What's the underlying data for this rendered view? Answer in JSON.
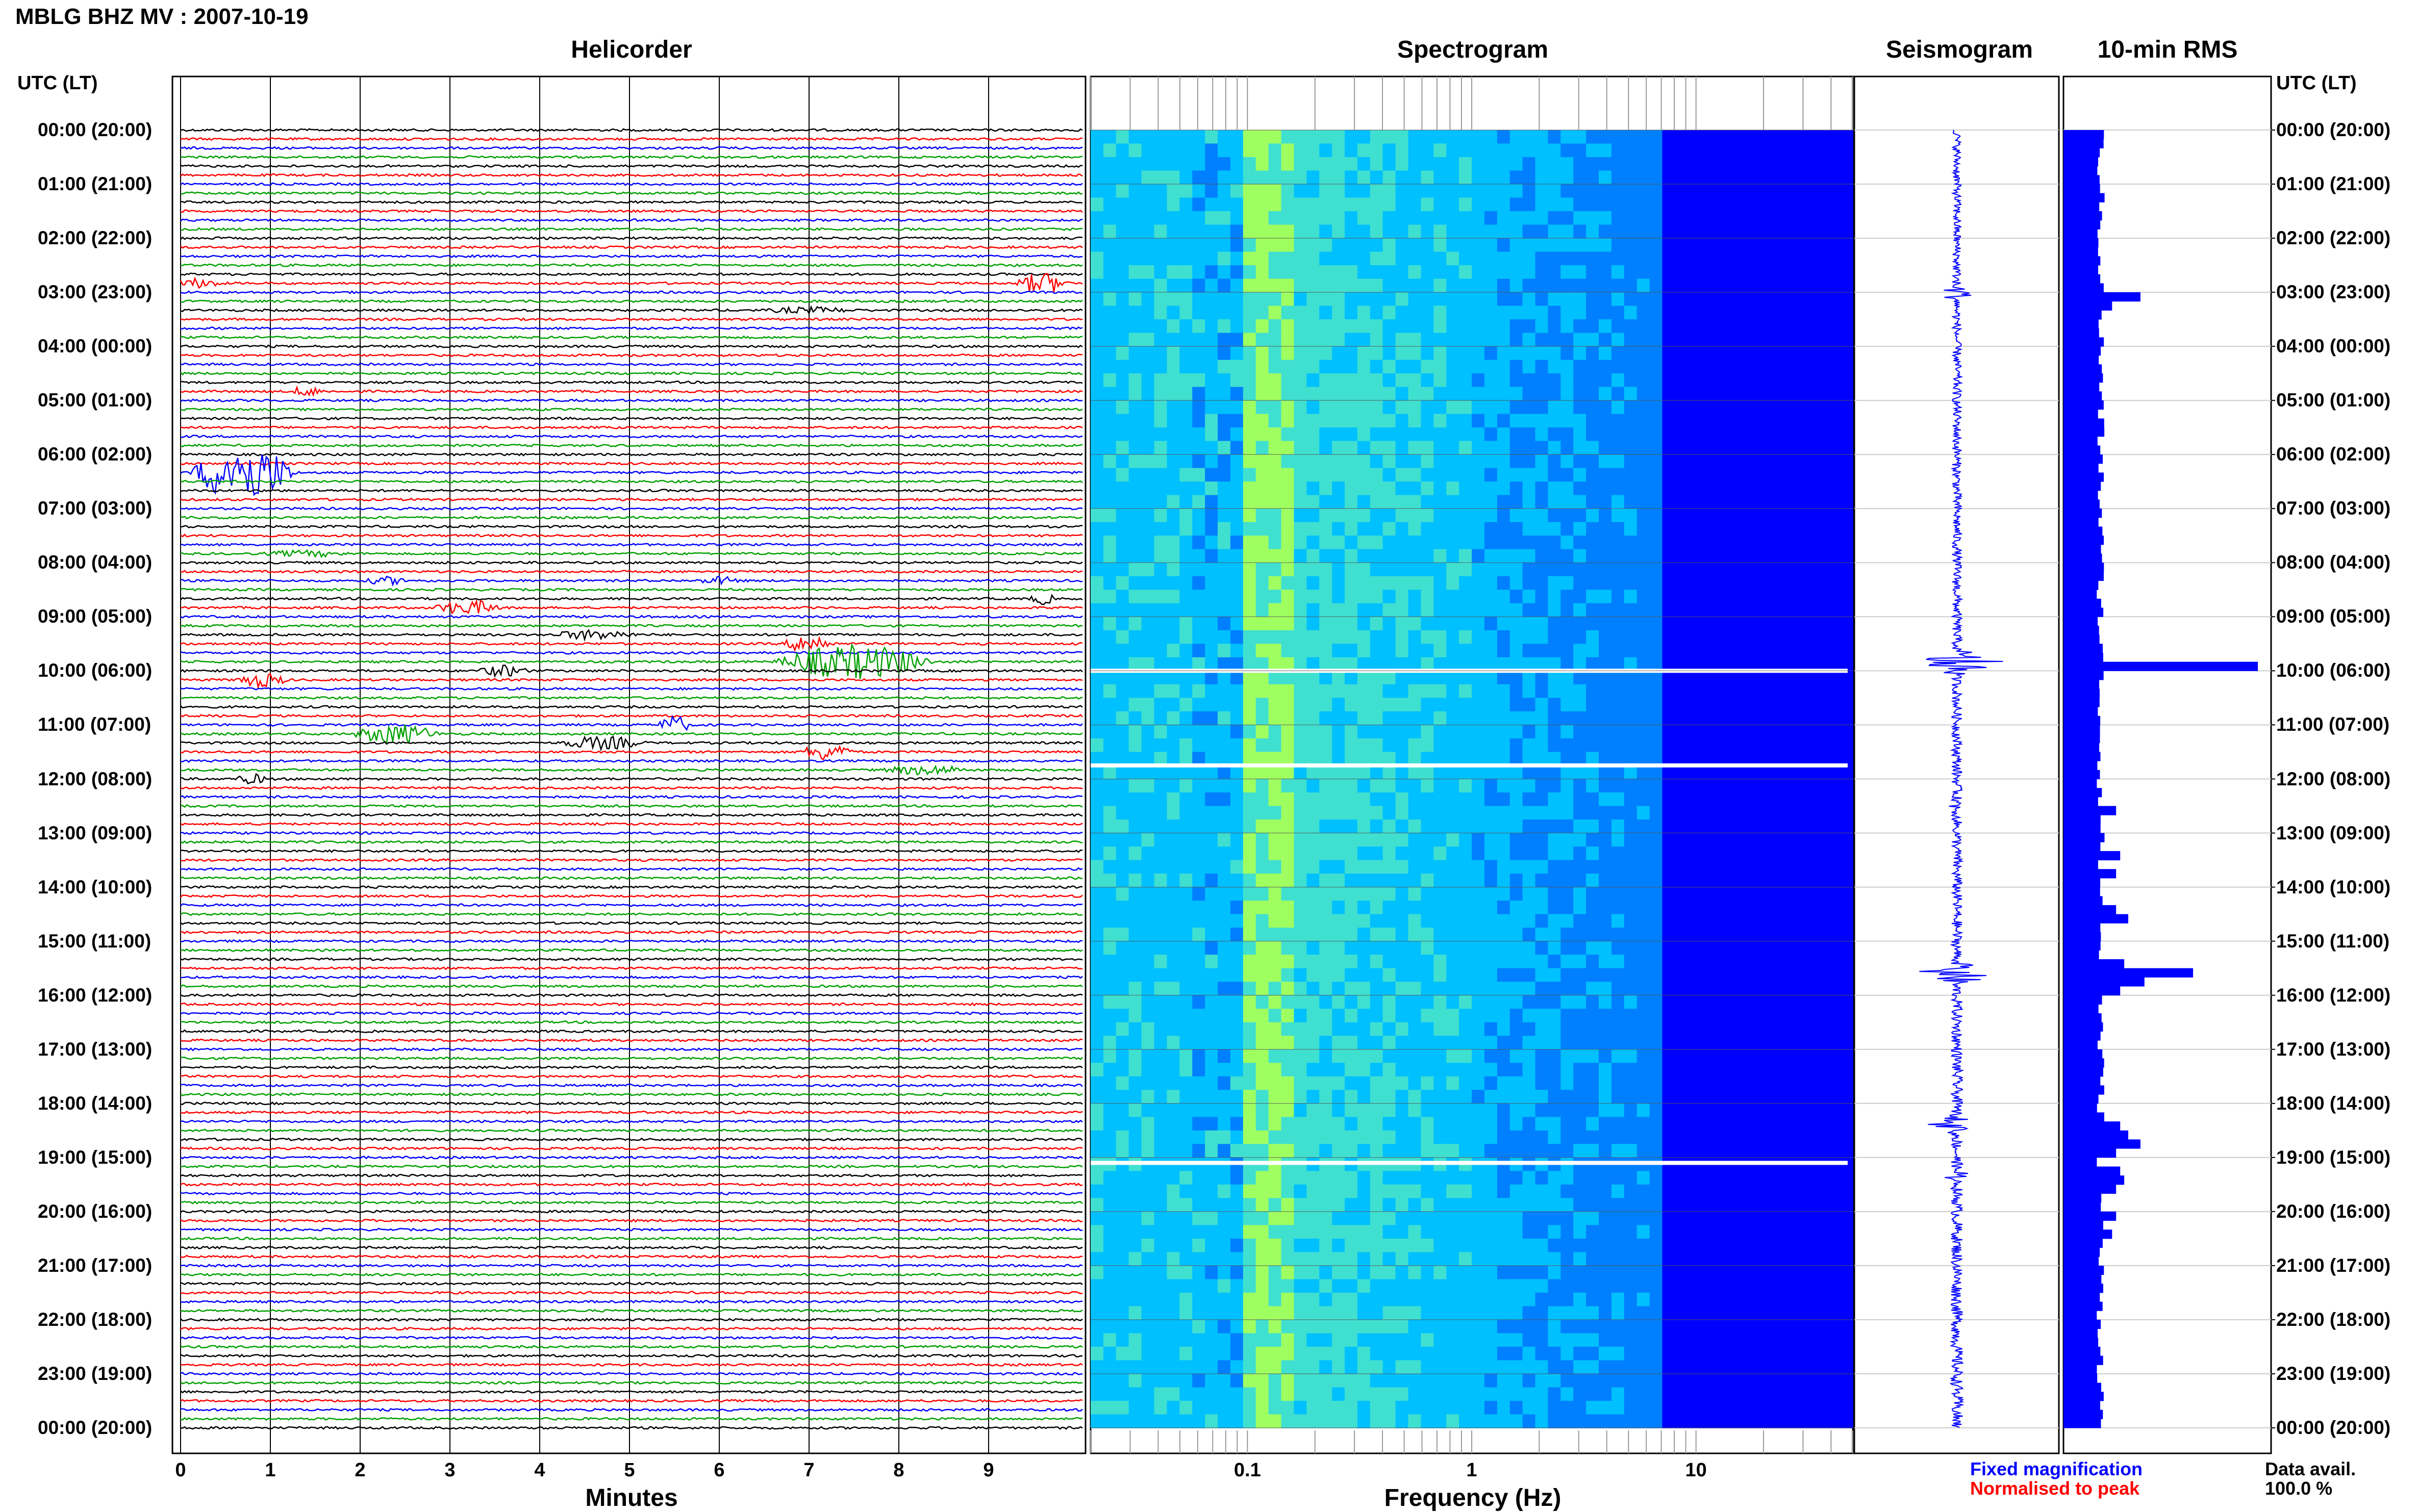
{
  "header": {
    "title": "MBLG BHZ MV : 2007-10-19"
  },
  "panels": {
    "helicorder": "Helicorder",
    "spectrogram": "Spectrogram",
    "seismogram": "Seismogram",
    "rms": "10-min RMS"
  },
  "axis_titles": {
    "left_time": "UTC (LT)",
    "right_time": "UTC (LT)",
    "helicorder_x": "Minutes",
    "spectrogram_x": "Frequency (Hz)"
  },
  "legend": {
    "fixed": "Fixed magnification",
    "normalised": "Normalised to peak",
    "fixed_color": "#0000ff",
    "normalised_color": "#ff0000",
    "avail_label": "Data avail.",
    "avail_value": "100.0 %"
  },
  "chart_data": [
    {
      "type": "line",
      "panel": "Helicorder",
      "xlabel": "Minutes",
      "x_ticks": [
        "0",
        "1",
        "2",
        "3",
        "4",
        "5",
        "6",
        "7",
        "8",
        "9"
      ],
      "xlim": [
        0,
        10
      ],
      "trace_colors": [
        "#000000",
        "#ff0000",
        "#0000ff",
        "#00a000"
      ],
      "hour_labels": [
        "00:00 (20:00)",
        "01:00 (21:00)",
        "02:00 (22:00)",
        "03:00 (23:00)",
        "04:00 (00:00)",
        "05:00 (01:00)",
        "06:00 (02:00)",
        "07:00 (03:00)",
        "08:00 (04:00)",
        "09:00 (05:00)",
        "10:00 (06:00)",
        "11:00 (07:00)",
        "12:00 (08:00)",
        "13:00 (09:00)",
        "14:00 (10:00)",
        "15:00 (11:00)",
        "16:00 (12:00)",
        "17:00 (13:00)",
        "18:00 (14:00)",
        "19:00 (15:00)",
        "20:00 (16:00)",
        "21:00 (17:00)",
        "22:00 (18:00)",
        "23:00 (19:00)",
        "00:00 (20:00)"
      ],
      "lines_per_hour": 6,
      "events": [
        {
          "row": 17,
          "minute": 9.6,
          "width": 0.6,
          "amp": 1.2
        },
        {
          "row": 17,
          "minute": 0.2,
          "width": 0.6,
          "amp": 0.5
        },
        {
          "row": 20,
          "minute": 7.0,
          "width": 1.0,
          "amp": 0.3
        },
        {
          "row": 29,
          "minute": 1.4,
          "width": 0.4,
          "amp": 0.5
        },
        {
          "row": 38,
          "minute": 0.7,
          "width": 1.2,
          "amp": 3.5
        },
        {
          "row": 47,
          "minute": 1.4,
          "width": 1.0,
          "amp": 0.3
        },
        {
          "row": 50,
          "minute": 2.3,
          "width": 0.5,
          "amp": 0.4
        },
        {
          "row": 50,
          "minute": 6.0,
          "width": 0.5,
          "amp": 0.4
        },
        {
          "row": 52,
          "minute": 9.6,
          "width": 0.3,
          "amp": 0.6
        },
        {
          "row": 53,
          "minute": 3.2,
          "width": 0.8,
          "amp": 0.8
        },
        {
          "row": 56,
          "minute": 4.6,
          "width": 1.0,
          "amp": 0.5
        },
        {
          "row": 57,
          "minute": 7.0,
          "width": 0.6,
          "amp": 1.0
        },
        {
          "row": 59,
          "minute": 7.5,
          "width": 1.8,
          "amp": 2.0
        },
        {
          "row": 60,
          "minute": 3.6,
          "width": 0.6,
          "amp": 0.6
        },
        {
          "row": 61,
          "minute": 0.9,
          "width": 0.6,
          "amp": 0.8
        },
        {
          "row": 66,
          "minute": 5.5,
          "width": 0.4,
          "amp": 1.0
        },
        {
          "row": 67,
          "minute": 2.4,
          "width": 1.0,
          "amp": 1.1
        },
        {
          "row": 68,
          "minute": 4.7,
          "width": 1.0,
          "amp": 0.7
        },
        {
          "row": 69,
          "minute": 7.2,
          "width": 0.6,
          "amp": 1.0
        },
        {
          "row": 71,
          "minute": 8.3,
          "width": 1.0,
          "amp": 0.5
        },
        {
          "row": 72,
          "minute": 0.8,
          "width": 0.4,
          "amp": 0.5
        }
      ]
    },
    {
      "type": "heatmap",
      "panel": "Spectrogram",
      "xlabel": "Frequency (Hz)",
      "x_scale": "log",
      "xlim": [
        0.02,
        50
      ],
      "x_ticks": [
        "0.1",
        "1",
        "10"
      ],
      "colormap": [
        "#00008b",
        "#0000ff",
        "#0080ff",
        "#00c0ff",
        "#40e0d0",
        "#a0ff60"
      ],
      "gaps_at_hours": [
        10,
        11.75,
        19.1
      ]
    },
    {
      "type": "line",
      "panel": "Seismogram",
      "spikes": [
        {
          "hour": 3.0,
          "amp": 0.35
        },
        {
          "hour": 9.85,
          "amp": 0.9
        },
        {
          "hour": 12.5,
          "amp": 0.12
        },
        {
          "hour": 15.6,
          "amp": 0.6
        },
        {
          "hour": 18.4,
          "amp": 0.35
        },
        {
          "hour": 19.3,
          "amp": 0.2
        }
      ]
    },
    {
      "type": "bar",
      "panel": "10-min RMS",
      "orientation": "horizontal",
      "bins": 144,
      "baseline": 1.0,
      "xlim": [
        0,
        5.0
      ],
      "peaks": [
        {
          "bin": 18,
          "value": 1.9
        },
        {
          "bin": 19,
          "value": 1.2
        },
        {
          "bin": 59,
          "value": 4.8
        },
        {
          "bin": 75,
          "value": 1.3
        },
        {
          "bin": 80,
          "value": 1.4
        },
        {
          "bin": 82,
          "value": 1.3
        },
        {
          "bin": 86,
          "value": 1.3
        },
        {
          "bin": 87,
          "value": 1.6
        },
        {
          "bin": 92,
          "value": 1.5
        },
        {
          "bin": 93,
          "value": 3.2
        },
        {
          "bin": 94,
          "value": 2.0
        },
        {
          "bin": 95,
          "value": 1.4
        },
        {
          "bin": 110,
          "value": 1.4
        },
        {
          "bin": 111,
          "value": 1.6
        },
        {
          "bin": 112,
          "value": 1.9
        },
        {
          "bin": 113,
          "value": 1.3
        },
        {
          "bin": 115,
          "value": 1.4
        },
        {
          "bin": 116,
          "value": 1.5
        },
        {
          "bin": 117,
          "value": 1.3
        },
        {
          "bin": 120,
          "value": 1.3
        },
        {
          "bin": 122,
          "value": 1.2
        }
      ]
    }
  ]
}
